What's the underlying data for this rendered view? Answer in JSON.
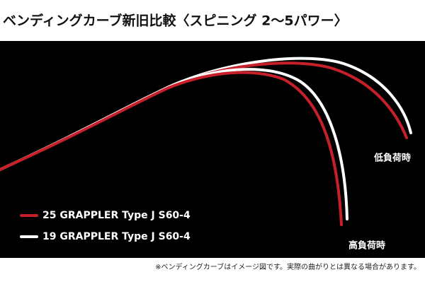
{
  "header": {
    "title": "ベンディングカーブ新旧比較〈スピニング 2～5パワー〉"
  },
  "legend": [
    {
      "name": "25 GRAPPLER Type J  S60-4",
      "color": "#c8202a"
    },
    {
      "name": "19 GRAPPLER Type J  S60-4",
      "color": "#ffffff"
    }
  ],
  "labels": {
    "low_load": "低負荷時",
    "high_load": "高負荷時"
  },
  "note": "※ベンディングカーブはイメージ図です。実際の曲がりとは異なる場合があります。"
}
